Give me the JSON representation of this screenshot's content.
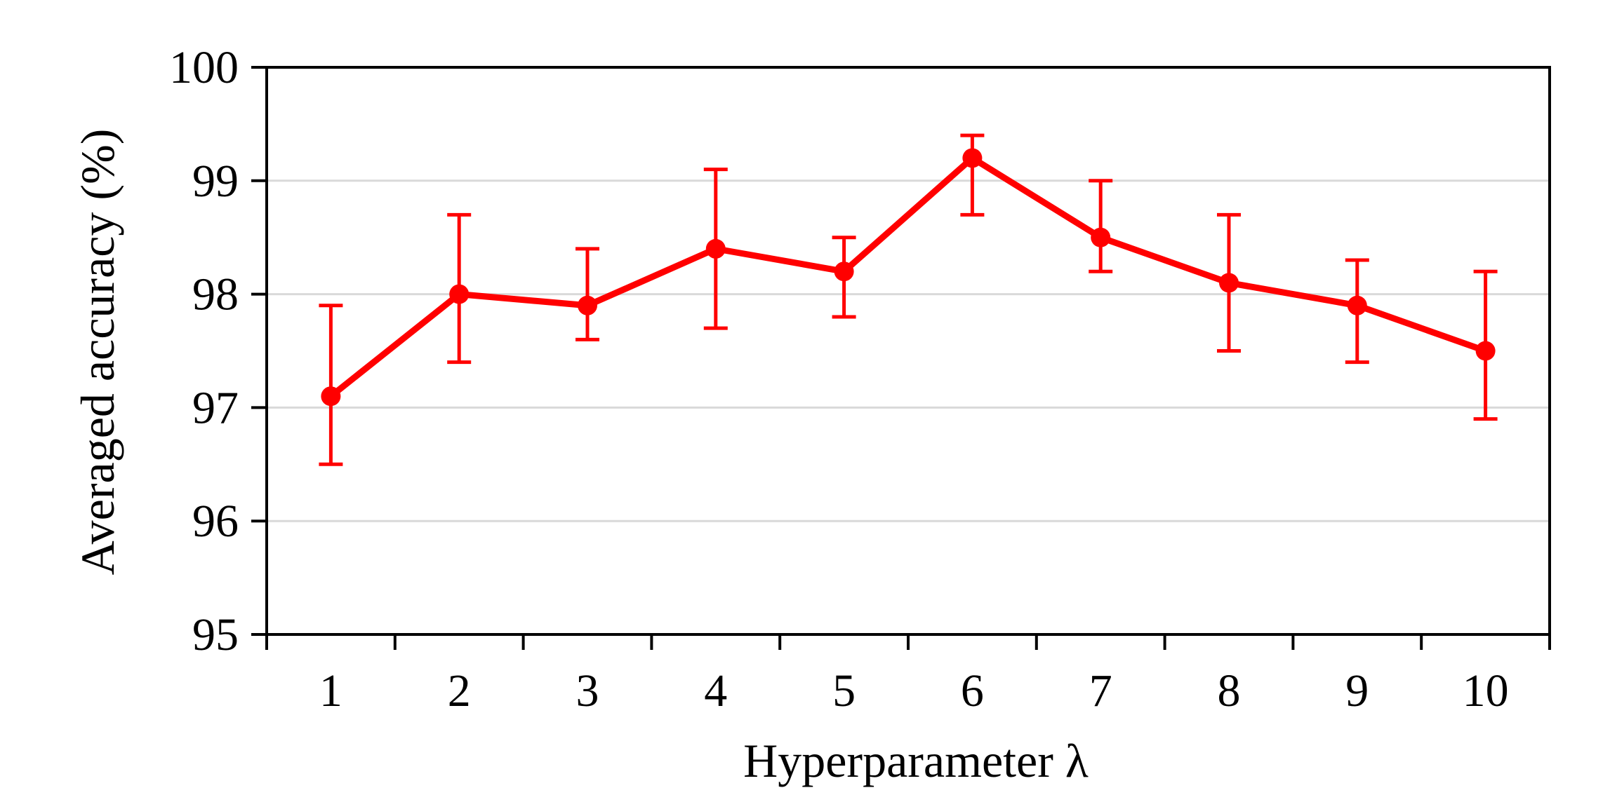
{
  "chart_data": {
    "type": "line",
    "title": "",
    "xlabel": "Hyperparameter λ",
    "ylabel": "Averaged accuracy (%)",
    "categories": [
      "1",
      "2",
      "3",
      "4",
      "5",
      "6",
      "7",
      "8",
      "9",
      "10"
    ],
    "series": [
      {
        "values": [
          97.1,
          98.0,
          97.9,
          98.4,
          98.2,
          99.2,
          98.5,
          98.1,
          97.9,
          97.5
        ],
        "error_upper": [
          97.9,
          98.7,
          98.4,
          99.1,
          98.5,
          99.4,
          99.0,
          98.7,
          98.3,
          98.2
        ],
        "error_lower": [
          96.5,
          97.4,
          97.6,
          97.7,
          97.8,
          98.7,
          98.2,
          97.5,
          97.4,
          96.9
        ],
        "color": "#ff0000"
      }
    ],
    "ylim": [
      95,
      100
    ],
    "yticks": [
      "95",
      "96",
      "97",
      "98",
      "99",
      "100"
    ],
    "grid": true,
    "grid_color": "#d9d9d9",
    "axis_color": "#000000",
    "legend": "none"
  }
}
